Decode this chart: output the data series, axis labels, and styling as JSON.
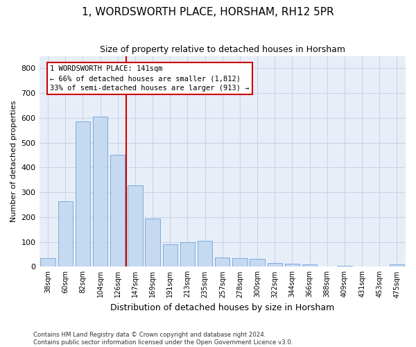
{
  "title": "1, WORDSWORTH PLACE, HORSHAM, RH12 5PR",
  "subtitle": "Size of property relative to detached houses in Horsham",
  "xlabel": "Distribution of detached houses by size in Horsham",
  "ylabel": "Number of detached properties",
  "categories": [
    "38sqm",
    "60sqm",
    "82sqm",
    "104sqm",
    "126sqm",
    "147sqm",
    "169sqm",
    "191sqm",
    "213sqm",
    "235sqm",
    "257sqm",
    "278sqm",
    "300sqm",
    "322sqm",
    "344sqm",
    "366sqm",
    "388sqm",
    "409sqm",
    "431sqm",
    "453sqm",
    "475sqm"
  ],
  "values": [
    35,
    265,
    585,
    605,
    450,
    328,
    195,
    90,
    100,
    103,
    38,
    35,
    33,
    15,
    13,
    10,
    0,
    5,
    0,
    0,
    8
  ],
  "bar_color": "#c5d9f0",
  "bar_edge_color": "#7aace0",
  "vline_color": "#cc0000",
  "vline_x": 4.5,
  "annotation_text": "1 WORDSWORTH PLACE: 141sqm\n← 66% of detached houses are smaller (1,812)\n33% of semi-detached houses are larger (913) →",
  "annotation_box_facecolor": "#ffffff",
  "annotation_box_edgecolor": "#cc0000",
  "grid_color": "#c8d4e8",
  "background_color": "#e8eef8",
  "footer_text": "Contains HM Land Registry data © Crown copyright and database right 2024.\nContains public sector information licensed under the Open Government Licence v3.0.",
  "ylim": [
    0,
    850
  ],
  "yticks": [
    0,
    100,
    200,
    300,
    400,
    500,
    600,
    700,
    800
  ]
}
